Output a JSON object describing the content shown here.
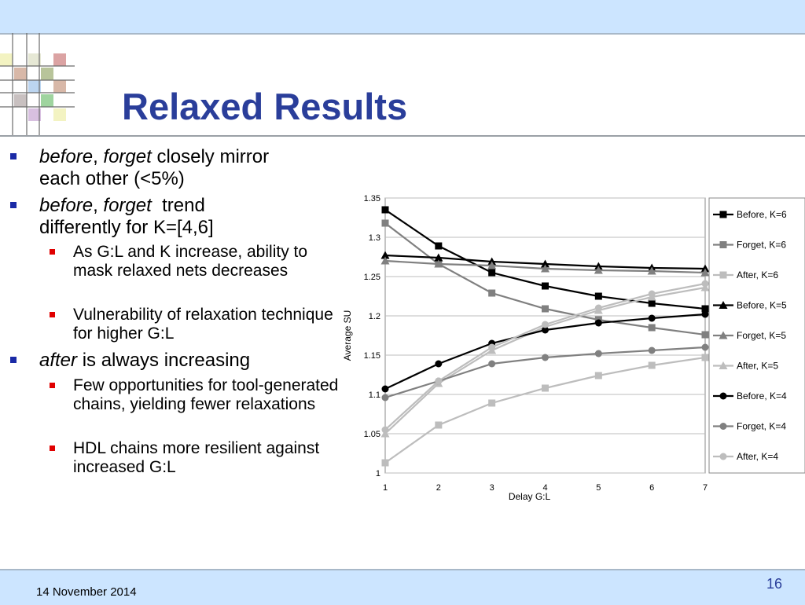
{
  "slide": {
    "title": "Relaxed Results",
    "date": "14 November 2014",
    "page_number": "16"
  },
  "bullets": {
    "b1": {
      "em1": "before",
      "sep": ", ",
      "em2": "forget",
      "rest_line1": " closely mirror",
      "line2": "each other (<5%)"
    },
    "b2": {
      "em1": "before",
      "sep": ", ",
      "em2": "forget",
      "rest_line1": "  trend",
      "line2": "differently for K=[4,6]"
    },
    "b2_sub1": "As G:L and K increase, ability to mask relaxed nets decreases",
    "b2_sub2": "Vulnerability of relaxation technique for higher G:L",
    "b3": {
      "em": "after",
      "rest": " is always increasing"
    },
    "b3_sub1": "Few opportunities for tool-generated chains, yielding fewer relaxations",
    "b3_sub2": "HDL chains more resilient against increased G:L"
  },
  "chart_data": {
    "type": "line",
    "xlabel": "Delay G:L",
    "ylabel": "Average SU",
    "x": [
      1,
      2,
      3,
      4,
      5,
      6,
      7
    ],
    "xlim": [
      1,
      7
    ],
    "ylim": [
      1,
      1.35
    ],
    "yticks": [
      "1",
      "1.05",
      "1.1",
      "1.15",
      "1.2",
      "1.25",
      "1.3",
      "1.35"
    ],
    "xticks": [
      "1",
      "2",
      "3",
      "4",
      "5",
      "6",
      "7"
    ],
    "grid": "horizontal",
    "legend_position": "right",
    "series": [
      {
        "name": "Before, K=6",
        "marker": "square",
        "color": "#000000",
        "values": [
          1.335,
          1.289,
          1.255,
          1.238,
          1.225,
          1.216,
          1.209
        ]
      },
      {
        "name": "Forget, K=6",
        "marker": "square",
        "color": "#808080",
        "values": [
          1.318,
          1.266,
          1.229,
          1.209,
          1.195,
          1.185,
          1.176
        ]
      },
      {
        "name": "After, K=6",
        "marker": "square",
        "color": "#bdbdbd",
        "values": [
          1.013,
          1.061,
          1.089,
          1.108,
          1.124,
          1.137,
          1.147
        ]
      },
      {
        "name": "Before, K=5",
        "marker": "triangle",
        "color": "#000000",
        "values": [
          1.277,
          1.274,
          1.269,
          1.266,
          1.263,
          1.261,
          1.26
        ]
      },
      {
        "name": "Forget, K=5",
        "marker": "triangle",
        "color": "#808080",
        "values": [
          1.27,
          1.266,
          1.264,
          1.26,
          1.258,
          1.257,
          1.255
        ]
      },
      {
        "name": "After, K=5",
        "marker": "triangle",
        "color": "#bdbdbd",
        "values": [
          1.05,
          1.114,
          1.156,
          1.186,
          1.207,
          1.224,
          1.236
        ]
      },
      {
        "name": "Before, K=4",
        "marker": "circle",
        "color": "#000000",
        "values": [
          1.107,
          1.139,
          1.165,
          1.182,
          1.191,
          1.197,
          1.202
        ]
      },
      {
        "name": "Forget, K=4",
        "marker": "circle",
        "color": "#808080",
        "values": [
          1.096,
          1.117,
          1.139,
          1.147,
          1.152,
          1.156,
          1.16
        ]
      },
      {
        "name": "After, K=4",
        "marker": "circle",
        "color": "#bdbdbd",
        "values": [
          1.055,
          1.117,
          1.16,
          1.189,
          1.21,
          1.228,
          1.241
        ]
      }
    ]
  }
}
